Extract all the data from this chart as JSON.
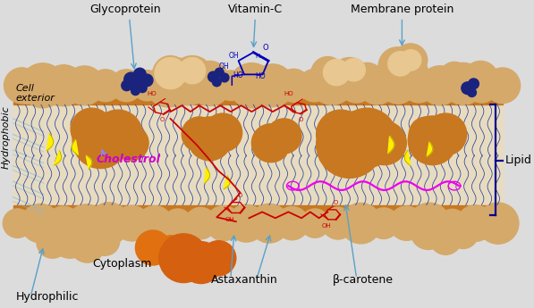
{
  "bg_color": "#dcdcdc",
  "membrane_color": "#d4a96a",
  "membrane_dark": "#c87820",
  "lipid_bg": "#e8dcc0",
  "tail_color": "#2840a0",
  "arrow_color": "#5aA0c8",
  "red_mol": "#cc0000",
  "pink_mol": "#ee00ee",
  "blue_mol": "#0000bb",
  "yellow_col": "#ffee00",
  "cholestrol_col": "#cc00cc",
  "dark_blue": "#1a237e",
  "orange_blob": "#e07010",
  "bracket_col": "#00008b",
  "labels": {
    "glycoprotein": "Glycoprotein",
    "vitamin_c": "Vitamin-C",
    "membrane_protein": "Membrane protein",
    "cell_exterior": "Cell\nexterior",
    "hydrophobic": "Hydrophobic",
    "cytoplasm": "Cytoplasm",
    "astaxanthin": "Astaxanthin",
    "beta_carotene": "β-carotene",
    "lipid": "Lipid",
    "hydrophilic": "Hydrophilic",
    "cholestrol": "Cholestrol"
  },
  "fig_width": 5.97,
  "fig_height": 3.45,
  "dpi": 100
}
